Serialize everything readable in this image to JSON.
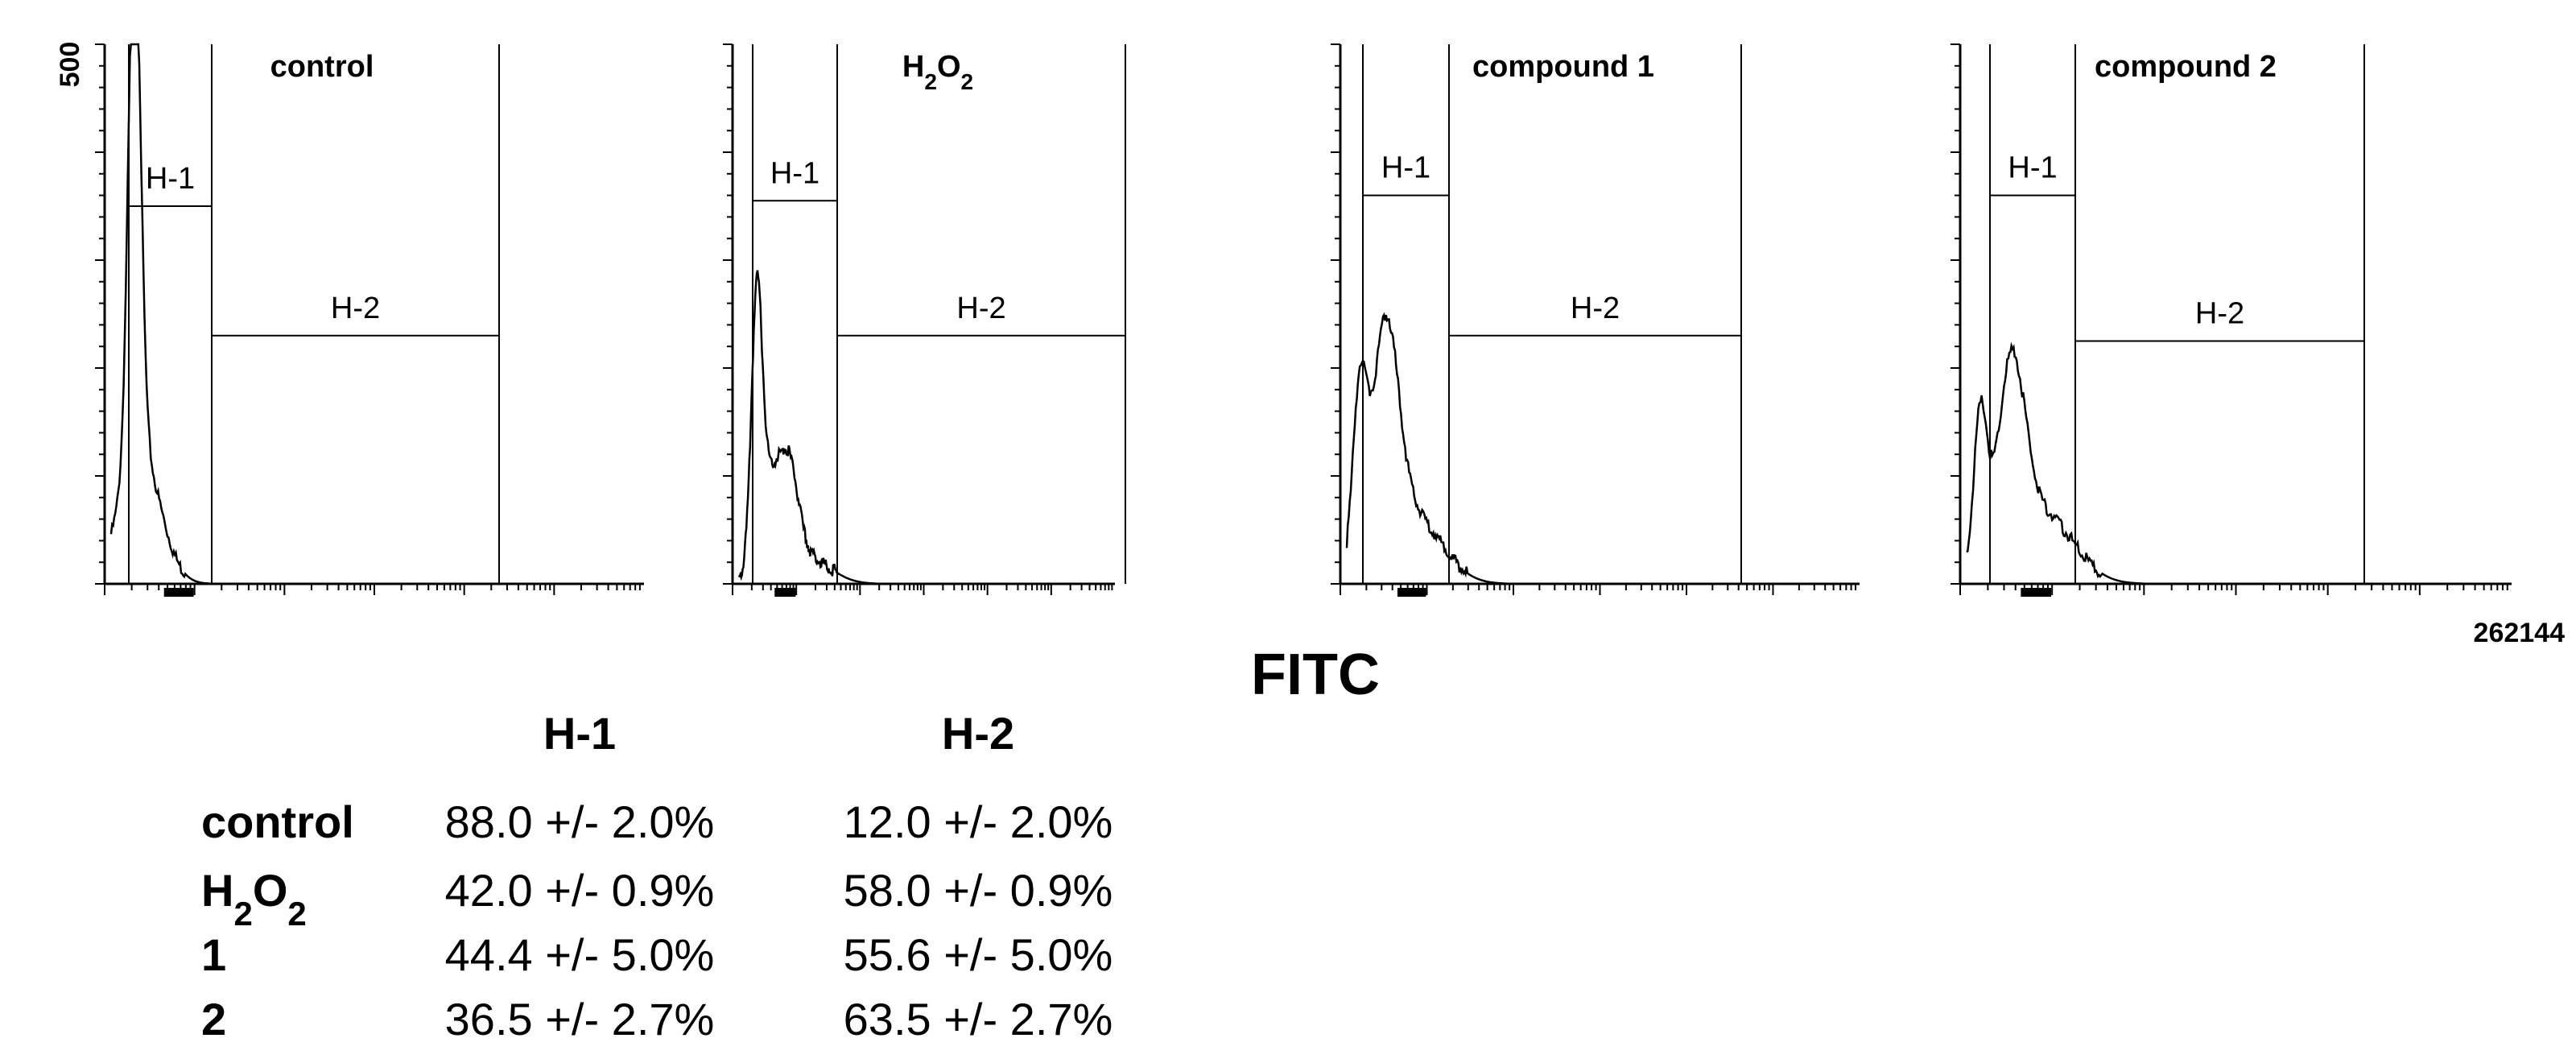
{
  "chart_data": {
    "type": "histogram",
    "xlabel": "FITC",
    "ymax_label": "500",
    "xmax_label": "262144",
    "ylim": [
      0,
      500
    ],
    "panels": [
      {
        "title": "control",
        "title_sub": "",
        "gates": [
          {
            "name": "H-1",
            "level": 0.7
          },
          {
            "name": "H-2",
            "level": 0.46
          }
        ],
        "peaks": [
          [
            0.07,
            1.0,
            0.018
          ],
          [
            0.085,
            0.25,
            0.06
          ]
        ]
      },
      {
        "title": "H",
        "title_sub": "2",
        "title_tail": "O",
        "title_sub2": "2",
        "gates": [
          {
            "name": "H-1",
            "level": 0.71
          },
          {
            "name": "H-2",
            "level": 0.46
          }
        ],
        "peaks": [
          [
            0.075,
            0.44,
            0.022
          ],
          [
            0.12,
            0.18,
            0.05
          ],
          [
            0.21,
            0.17,
            0.04
          ],
          [
            0.28,
            0.05,
            0.1
          ]
        ]
      },
      {
        "title": "compound 1",
        "title_sub": "",
        "gates": [
          {
            "name": "H-1",
            "level": 0.72
          },
          {
            "name": "H-2",
            "level": 0.46
          }
        ],
        "peaks": [
          [
            0.04,
            0.32,
            0.022
          ],
          [
            0.12,
            0.41,
            0.04
          ],
          [
            0.2,
            0.13,
            0.09
          ]
        ]
      },
      {
        "title": "compound 2",
        "title_sub": "",
        "gates": [
          {
            "name": "H-1",
            "level": 0.72
          },
          {
            "name": "H-2",
            "level": 0.45
          }
        ],
        "peaks": [
          [
            0.04,
            0.29,
            0.02
          ],
          [
            0.13,
            0.35,
            0.04
          ],
          [
            0.22,
            0.13,
            0.09
          ]
        ]
      }
    ]
  },
  "table": {
    "headers": [
      "H-1",
      "H-2"
    ],
    "rows": [
      {
        "label": "control",
        "label_sub": "",
        "label_tail": "",
        "label_sub2": "",
        "h1": "88.0 +/- 2.0%",
        "h2": "12.0 +/- 2.0%"
      },
      {
        "label": "H",
        "label_sub": "2",
        "label_tail": "O",
        "label_sub2": "2",
        "h1": "42.0 +/- 0.9%",
        "h2": "58.0 +/- 0.9%"
      },
      {
        "label": "1",
        "label_sub": "",
        "label_tail": "",
        "label_sub2": "",
        "h1": "44.4 +/- 5.0%",
        "h2": "55.6 +/- 5.0%"
      },
      {
        "label": "2",
        "label_sub": "",
        "label_tail": "",
        "label_sub2": "",
        "h1": "36.5 +/- 2.7%",
        "h2": "63.5 +/- 2.7%"
      }
    ]
  }
}
